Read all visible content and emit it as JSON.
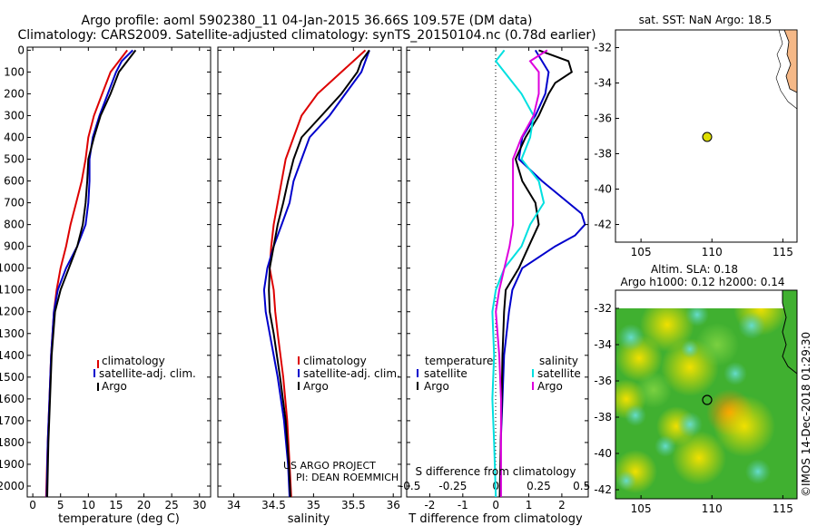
{
  "header": {
    "line1": "Argo profile: aoml 5902380_11 04-Jan-2015 36.66S 109.57E (DM data)",
    "line2": "Climatology: CARS2009. Satellite-adjusted climatology: synTS_20150104.nc (0.78d earlier)"
  },
  "depth_ticks": [
    "0",
    "100",
    "200",
    "300",
    "400",
    "500",
    "600",
    "700",
    "800",
    "900",
    "1000",
    "1100",
    "1200",
    "1300",
    "1400",
    "1500",
    "1600",
    "1700",
    "1800",
    "1900",
    "2000"
  ],
  "colors": {
    "climatology": "#dd0000",
    "satellite": "#0000cc",
    "argo": "#000000",
    "sat_salinity": "#00e0e0",
    "argo_salinity": "#dd00dd",
    "land": "#f5b887",
    "marker": "#dddd00"
  },
  "legend": {
    "climatology": "climatology",
    "satellite": "satellite-adj. clim.",
    "argo": "Argo"
  },
  "diff_legend": {
    "temperature": "temperature",
    "salinity": "salinity",
    "satellite": "satellite",
    "argo": "Argo"
  },
  "credit": {
    "line1": "US ARGO PROJECT",
    "line2": "PI: DEAN ROEMMICH"
  },
  "map_top": {
    "title": "sat. SST: NaN Argo: 18.5",
    "lat_ticks": [
      "-32",
      "-34",
      "-36",
      "-38",
      "-40",
      "-42"
    ],
    "lon_ticks": [
      "105",
      "110",
      "115"
    ]
  },
  "map_bottom": {
    "title_line1": "Altim. SLA: 0.18",
    "title_line2": "Argo h1000: 0.12 h2000: 0.14",
    "lat_ticks": [
      "-32",
      "-34",
      "-36",
      "-38",
      "-40",
      "-42"
    ],
    "lon_ticks": [
      "105",
      "110",
      "115"
    ]
  },
  "stamp": "©IMOS 14-Dec-2018 01:29:30",
  "chart_data": [
    {
      "type": "line",
      "panel": "temperature",
      "xlabel": "temperature (deg C)",
      "xlim": [
        -1,
        32
      ],
      "ylim": [
        0,
        2050
      ],
      "x_ticks": [
        "0",
        "5",
        "10",
        "15",
        "20",
        "25",
        "30"
      ],
      "series": [
        {
          "name": "climatology",
          "depth": [
            0,
            50,
            100,
            200,
            300,
            400,
            500,
            600,
            700,
            800,
            900,
            1000,
            1100,
            1200,
            1400,
            1600,
            1800,
            2050
          ],
          "values": [
            17,
            15.5,
            14,
            12.5,
            11,
            10,
            9.5,
            8.8,
            7.8,
            6.8,
            6,
            5,
            4.3,
            3.8,
            3.3,
            3,
            2.7,
            2.4
          ]
        },
        {
          "name": "satellite-adj. clim.",
          "depth": [
            0,
            50,
            100,
            200,
            300,
            400,
            500,
            600,
            700,
            800,
            900,
            1000,
            1100,
            1200,
            1400,
            1600,
            1800,
            2050
          ],
          "values": [
            18,
            16,
            15,
            13.5,
            12,
            10.8,
            10.2,
            10.2,
            10,
            9.5,
            8,
            6,
            4.5,
            3.8,
            3.3,
            3,
            2.7,
            2.5
          ]
        },
        {
          "name": "Argo",
          "depth": [
            0,
            50,
            100,
            200,
            300,
            400,
            500,
            600,
            700,
            800,
            900,
            1000,
            1100,
            1200,
            1400,
            1600,
            1800,
            2050
          ],
          "values": [
            18.5,
            17,
            15.5,
            14,
            12.2,
            11,
            10,
            9.8,
            9.5,
            9,
            8,
            6.5,
            5,
            4,
            3.4,
            3.1,
            2.8,
            2.6
          ]
        }
      ]
    },
    {
      "type": "line",
      "panel": "salinity",
      "xlabel": "salinity",
      "xlim": [
        33.8,
        36.1
      ],
      "ylim": [
        0,
        2050
      ],
      "x_ticks": [
        "34",
        "34.5",
        "35",
        "35.5",
        "36"
      ],
      "series": [
        {
          "name": "climatology",
          "depth": [
            0,
            50,
            100,
            200,
            300,
            400,
            500,
            600,
            700,
            800,
            900,
            1000,
            1100,
            1200,
            1300,
            1500,
            1700,
            1900,
            2050
          ],
          "values": [
            35.65,
            35.5,
            35.35,
            35.05,
            34.85,
            34.75,
            34.65,
            34.6,
            34.55,
            34.5,
            34.47,
            34.45,
            34.5,
            34.52,
            34.55,
            34.62,
            34.67,
            34.7,
            34.72
          ]
        },
        {
          "name": "satellite-adj. clim.",
          "depth": [
            0,
            50,
            100,
            200,
            300,
            400,
            500,
            600,
            700,
            800,
            900,
            1000,
            1100,
            1200,
            1300,
            1500,
            1700,
            1900,
            2050
          ],
          "values": [
            35.7,
            35.65,
            35.6,
            35.4,
            35.2,
            34.95,
            34.85,
            34.75,
            34.7,
            34.6,
            34.5,
            34.42,
            34.38,
            34.4,
            34.45,
            34.55,
            34.63,
            34.68,
            34.7
          ]
        },
        {
          "name": "Argo",
          "depth": [
            0,
            50,
            100,
            200,
            300,
            400,
            500,
            600,
            700,
            800,
            900,
            1000,
            1100,
            1200,
            1300,
            1500,
            1700,
            1900,
            2050
          ],
          "values": [
            35.7,
            35.6,
            35.55,
            35.35,
            35.1,
            34.85,
            34.75,
            34.68,
            34.62,
            34.55,
            34.5,
            34.45,
            34.44,
            34.45,
            34.5,
            34.58,
            34.65,
            34.69,
            34.71
          ]
        }
      ]
    },
    {
      "type": "line",
      "panel": "difference",
      "xlabel": "T difference from climatology",
      "xlabel2": "S difference from climatology",
      "xlim": [
        -2.7,
        2.8
      ],
      "ylim": [
        0,
        2050
      ],
      "x_ticks": [
        "-2",
        "-1",
        "0",
        "1",
        "2"
      ],
      "x_ticks_s": [
        "-0.5",
        "-0.25",
        "0",
        "0.25",
        "0.5"
      ],
      "series": [
        {
          "name": "temperature satellite",
          "depth": [
            0,
            100,
            200,
            300,
            400,
            500,
            600,
            700,
            750,
            800,
            850,
            900,
            1000,
            1100,
            1200,
            1400,
            1600,
            1800,
            2050
          ],
          "values": [
            1.2,
            1.6,
            1.5,
            1.2,
            0.8,
            0.7,
            1.4,
            2.2,
            2.6,
            2.7,
            2.4,
            1.8,
            0.8,
            0.5,
            0.4,
            0.25,
            0.2,
            0.15,
            0.15
          ]
        },
        {
          "name": "temperature Argo",
          "depth": [
            0,
            50,
            100,
            150,
            200,
            300,
            400,
            500,
            600,
            700,
            800,
            900,
            1000,
            1100,
            1200,
            1400,
            1600,
            1800,
            2050
          ],
          "values": [
            1.3,
            2.2,
            2.3,
            1.8,
            1.6,
            1.3,
            0.9,
            0.6,
            0.8,
            1.2,
            1.3,
            1.0,
            0.7,
            0.3,
            0.25,
            0.2,
            0.18,
            0.15,
            0.12
          ]
        },
        {
          "name": "salinity satellite",
          "depth": [
            0,
            50,
            100,
            200,
            300,
            400,
            500,
            600,
            700,
            800,
            900,
            1000,
            1100,
            1200,
            1400,
            1600,
            1800,
            2050
          ],
          "values": [
            0.05,
            0.0,
            0.05,
            0.15,
            0.22,
            0.2,
            0.15,
            0.25,
            0.28,
            0.2,
            0.15,
            0.05,
            0.0,
            -0.02,
            -0.01,
            -0.02,
            -0.01,
            0.0
          ]
        },
        {
          "name": "salinity Argo",
          "depth": [
            0,
            50,
            100,
            200,
            300,
            400,
            500,
            600,
            700,
            800,
            900,
            1000,
            1100,
            1200,
            1400,
            1600,
            1800,
            2050
          ],
          "values": [
            0.3,
            0.2,
            0.25,
            0.25,
            0.22,
            0.15,
            0.1,
            0.1,
            0.1,
            0.1,
            0.08,
            0.05,
            0.02,
            0.0,
            0.02,
            0.03,
            0.03,
            0.03
          ]
        }
      ]
    },
    {
      "type": "scatter",
      "panel": "sst map",
      "xlim": [
        103.2,
        116
      ],
      "ylim": [
        -43,
        -31
      ],
      "points": [
        {
          "lon": 109.57,
          "lat": -36.66
        }
      ]
    },
    {
      "type": "heatmap",
      "panel": "sla map",
      "xlim": [
        103.2,
        116
      ],
      "ylim": [
        -42.5,
        -31
      ],
      "points": [
        {
          "lon": 109.57,
          "lat": -36.66
        }
      ]
    }
  ]
}
